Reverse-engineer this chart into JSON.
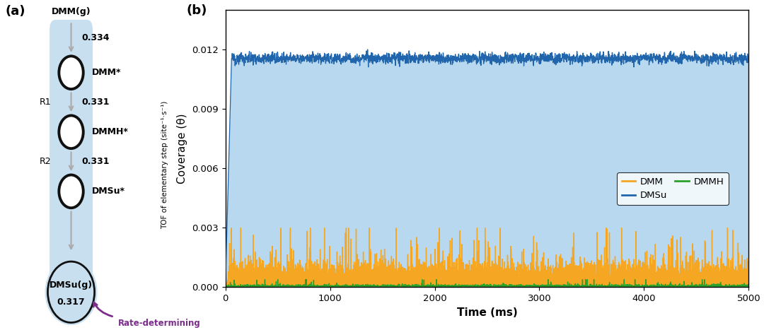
{
  "panel_a": {
    "bg_color": "#c8dff0",
    "circle_edge": "#111111",
    "arrow_color": "#aaaaaa",
    "purple_color": "#7b2d8b",
    "tof_values": [
      "0.334",
      "0.331",
      "0.331"
    ],
    "reaction_labels": [
      "R1",
      "R2"
    ],
    "tof_ylabel": "TOF of elementary step (site⁻¹·s⁻¹)"
  },
  "panel_b": {
    "xlabel": "Time (ms)",
    "ylabel": "Coverage (θ)",
    "xlim": [
      0,
      5000
    ],
    "ylim": [
      0,
      0.014
    ],
    "yticks": [
      0,
      0.003,
      0.006,
      0.009,
      0.012
    ],
    "xticks": [
      0,
      1000,
      2000,
      3000,
      4000,
      5000
    ],
    "dmsu_base": 0.01155,
    "dmsu_noise": 0.00022,
    "dmm_base": 0.00055,
    "dmm_noise": 0.00038,
    "dmmh_base": 4e-05,
    "dmmh_noise": 5e-05,
    "dmsu_color": "#2166ac",
    "dmm_color": "#f5a623",
    "dmmh_color": "#2ca02c",
    "fill_color": "#b8d8ef",
    "n_points": 5000
  }
}
